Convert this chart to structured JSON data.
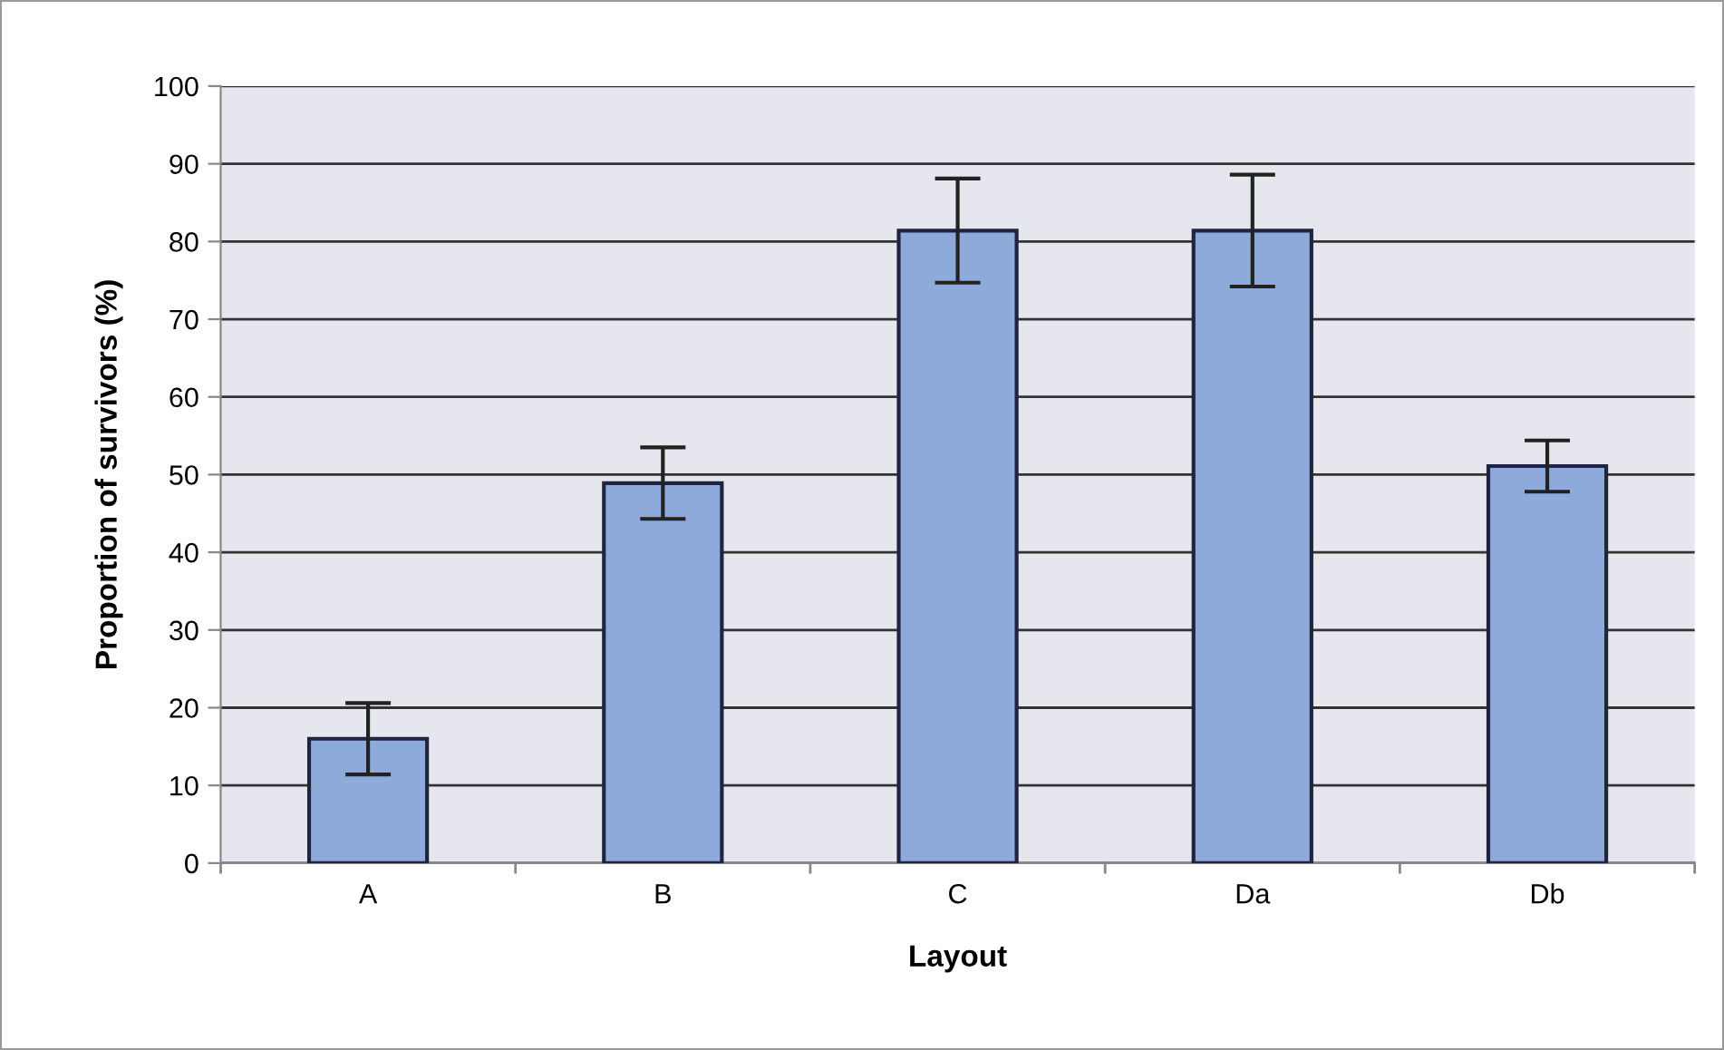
{
  "chart_data": {
    "type": "bar",
    "xlabel": "Layout",
    "ylabel": "Proportion of survivors (%)",
    "categories": [
      "A",
      "B",
      "C",
      "Da",
      "Db"
    ],
    "values": [
      16,
      48.9,
      81.4,
      81.4,
      51.1
    ],
    "errors": [
      4.6,
      4.6,
      6.7,
      7.2,
      3.3
    ],
    "color": "#8eaadb",
    "ylim": [
      0,
      100
    ],
    "yticks": [
      0,
      10,
      20,
      30,
      40,
      50,
      60,
      70,
      80,
      90,
      100
    ],
    "grid": "y",
    "legend": false
  }
}
